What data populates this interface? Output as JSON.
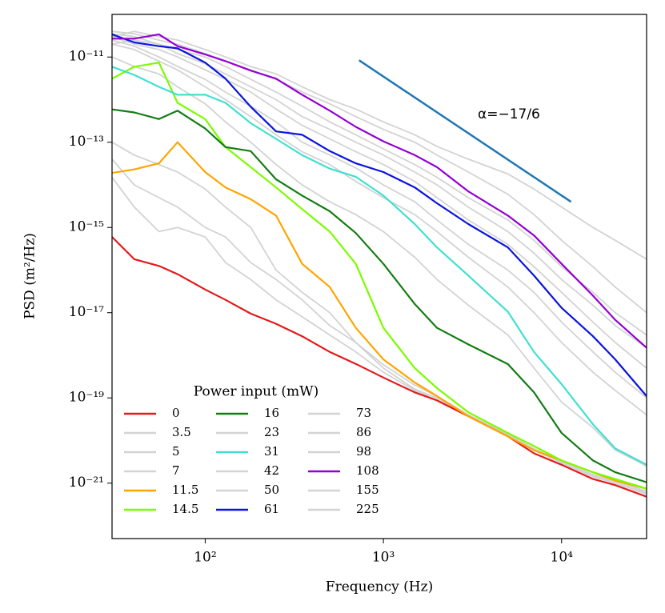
{
  "chart_data": {
    "type": "line",
    "x_label": "Frequency (Hz)",
    "y_label": "PSD (m²/Hz)",
    "x_log": true,
    "y_log": true,
    "xlim": [
      30,
      30000
    ],
    "ylim": [
      5e-23,
      1e-10
    ],
    "xticks": [
      {
        "value": 100,
        "label": "10²"
      },
      {
        "value": 1000,
        "label": "10³"
      },
      {
        "value": 10000,
        "label": "10⁴"
      }
    ],
    "yticks": [
      {
        "value": 1e-21,
        "label": "10⁻²¹"
      },
      {
        "value": 1e-19,
        "label": "10⁻¹⁹"
      },
      {
        "value": 1e-17,
        "label": "10⁻¹⁷"
      },
      {
        "value": 1e-15,
        "label": "10⁻¹⁵"
      },
      {
        "value": 1e-13,
        "label": "10⁻¹³"
      },
      {
        "value": 1e-11,
        "label": "10⁻¹¹"
      }
    ],
    "legend_title": "Power input (mW)",
    "legend_loc": "lower left",
    "annotation": "α=−17/6",
    "ref_line": {
      "x": [
        730,
        11300
      ],
      "values": [
        8.4e-12,
        4e-15
      ],
      "color": "#1f77b4"
    },
    "x": [
      30,
      40,
      55,
      70,
      100,
      130,
      180,
      250,
      350,
      500,
      700,
      1000,
      1500,
      2000,
      3000,
      5000,
      7000,
      10000,
      15000,
      20000,
      30000
    ],
    "series": [
      {
        "name": "0",
        "color": "#e41a1c",
        "values": [
          6e-16,
          1.8e-16,
          1.25e-16,
          8e-17,
          3.5e-17,
          2e-17,
          9.5e-18,
          5.5e-18,
          2.8e-18,
          1.2e-18,
          6.3e-19,
          3e-19,
          1.35e-19,
          8.7e-20,
          3.7e-20,
          1.25e-20,
          5e-21,
          2.7e-21,
          1.25e-21,
          9e-22,
          4.8e-22
        ]
      },
      {
        "name": "3.5",
        "color": "#d3d3d3",
        "values": [
          1.5e-14,
          3e-15,
          8e-16,
          1e-15,
          6e-16,
          1.5e-16,
          6e-17,
          2e-17,
          8e-18,
          3e-18,
          1.2e-18,
          4e-19,
          1.5e-19,
          9e-20,
          4e-20,
          1.3e-20,
          6e-21,
          3e-21,
          1.4e-21,
          1e-21,
          5.5e-22
        ]
      },
      {
        "name": "5",
        "color": "#d3d3d3",
        "values": [
          4e-14,
          1e-14,
          5e-15,
          3e-15,
          1e-15,
          6e-16,
          1.5e-16,
          6e-17,
          2e-17,
          5e-18,
          2e-18,
          5e-19,
          1.6e-19,
          1e-19,
          4e-20,
          1.4e-20,
          6e-21,
          3e-21,
          1.5e-21,
          1e-21,
          6e-22
        ]
      },
      {
        "name": "7",
        "color": "#d3d3d3",
        "values": [
          1e-13,
          5e-14,
          3e-14,
          2e-14,
          8e-15,
          3e-15,
          1e-15,
          1e-16,
          3e-17,
          1e-17,
          2e-18,
          6e-19,
          2e-19,
          1.1e-19,
          4e-20,
          1.4e-20,
          6.5e-21,
          3.2e-21,
          1.6e-21,
          1.1e-21,
          6.5e-22
        ]
      },
      {
        "name": "11.5",
        "color": "#ffa500",
        "values": [
          1.9e-14,
          2.3e-14,
          3.2e-14,
          1e-13,
          2e-14,
          8.7e-15,
          4.6e-15,
          1.9e-15,
          1.4e-16,
          4e-17,
          4.4e-18,
          8e-19,
          2.3e-19,
          1.1e-19,
          3.7e-20,
          1.25e-20,
          5.9e-21,
          3.4e-21,
          1.8e-21,
          1.15e-21,
          7.4e-22
        ]
      },
      {
        "name": "14.5",
        "color": "#7cfc00",
        "values": [
          3.1e-12,
          5.9e-12,
          7.4e-12,
          8.4e-13,
          3.5e-13,
          7.7e-14,
          2.6e-14,
          8.7e-15,
          2.7e-15,
          8e-16,
          1.4e-16,
          4.4e-18,
          5e-19,
          1.7e-19,
          4.6e-20,
          1.5e-20,
          7.4e-21,
          3.4e-21,
          1.8e-21,
          1.25e-21,
          7.4e-22
        ]
      },
      {
        "name": "16",
        "color": "#137d13",
        "values": [
          5.9e-13,
          5e-13,
          3.5e-13,
          5.5e-13,
          2.1e-13,
          7.7e-14,
          6.2e-14,
          1.35e-14,
          5.6e-15,
          2.4e-15,
          7.4e-16,
          1.4e-16,
          1.6e-17,
          4.4e-18,
          1.8e-18,
          6.2e-19,
          1.35e-19,
          1.5e-20,
          3.4e-21,
          1.8e-21,
          1.05e-21
        ]
      },
      {
        "name": "23",
        "color": "#d3d3d3",
        "values": [
          1e-11,
          6e-12,
          4e-12,
          2e-12,
          8e-13,
          3e-13,
          1e-13,
          3e-14,
          1e-14,
          4e-15,
          2e-15,
          8e-16,
          2e-16,
          6e-17,
          1.5e-17,
          3e-18,
          5e-19,
          8e-20,
          2e-20,
          6e-21,
          2.5e-21
        ]
      },
      {
        "name": "31",
        "color": "#40e0d0",
        "values": [
          5.9e-12,
          3.8e-12,
          2e-12,
          1.3e-12,
          1.3e-12,
          8.4e-13,
          2.8e-13,
          1.2e-13,
          5e-14,
          2.4e-14,
          1.55e-14,
          5.6e-15,
          1.2e-15,
          3.4e-16,
          7.4e-17,
          1.05e-17,
          1.2e-18,
          2.1e-19,
          2.4e-20,
          6.5e-21,
          2.7e-21
        ]
      },
      {
        "name": "42",
        "color": "#d3d3d3",
        "values": [
          2e-11,
          1.5e-11,
          8e-12,
          5e-12,
          2e-12,
          1e-12,
          4e-13,
          1.5e-13,
          6e-14,
          3e-14,
          1.2e-14,
          5e-15,
          2e-15,
          8e-16,
          2e-16,
          4e-17,
          1e-17,
          2e-18,
          4e-19,
          1.5e-19,
          4e-20
        ]
      },
      {
        "name": "50",
        "color": "#d3d3d3",
        "values": [
          2.5e-11,
          1.8e-11,
          1e-11,
          6e-12,
          3e-12,
          1.5e-12,
          7e-13,
          3e-13,
          1e-13,
          5e-14,
          2.5e-14,
          1e-14,
          4e-15,
          1.5e-15,
          4e-16,
          1e-16,
          3e-17,
          6e-18,
          1.2e-18,
          4e-19,
          1e-19
        ]
      },
      {
        "name": "61",
        "color": "#0a14e0",
        "values": [
          3.4e-11,
          2.2e-11,
          1.8e-11,
          1.6e-11,
          7.4e-12,
          3.1e-12,
          6.8e-13,
          1.8e-13,
          1.5e-13,
          6.2e-14,
          3.2e-14,
          2e-14,
          8.7e-15,
          3.7e-15,
          1.2e-15,
          3.4e-16,
          7.4e-17,
          1.3e-17,
          2.8e-18,
          8e-19,
          1.1e-19
        ]
      },
      {
        "name": "73",
        "color": "#d3d3d3",
        "values": [
          3e-11,
          2e-11,
          1.5e-11,
          1e-11,
          5e-12,
          3e-12,
          1.5e-12,
          6e-13,
          2.5e-13,
          1.2e-13,
          6e-14,
          3e-14,
          1.2e-14,
          5e-15,
          1.5e-15,
          4e-16,
          1.2e-16,
          3e-17,
          6e-18,
          2e-18,
          5e-19
        ]
      },
      {
        "name": "86",
        "color": "#d3d3d3",
        "values": [
          2e-11,
          2.5e-11,
          2e-11,
          1.2e-11,
          7e-12,
          4e-12,
          2e-12,
          1e-12,
          4e-13,
          2e-13,
          1e-13,
          5e-14,
          2e-14,
          1e-14,
          3e-15,
          8e-16,
          2.5e-16,
          6e-17,
          1.5e-17,
          5e-18,
          1.5e-18
        ]
      },
      {
        "name": "98",
        "color": "#d3d3d3",
        "values": [
          3.5e-11,
          3e-11,
          2e-11,
          1.5e-11,
          1e-11,
          6e-12,
          3e-12,
          1.5e-12,
          7e-13,
          3e-13,
          1.5e-13,
          7e-14,
          3e-14,
          1.5e-14,
          5e-15,
          1.5e-15,
          5e-16,
          1.2e-16,
          3e-17,
          1e-17,
          3e-18
        ]
      },
      {
        "name": "108",
        "color": "#9400d3",
        "values": [
          2.7e-11,
          2.7e-11,
          3.4e-11,
          1.8e-11,
          1.15e-11,
          8e-12,
          4.8e-12,
          3.1e-12,
          1.3e-12,
          5.5e-13,
          2.3e-13,
          1.05e-13,
          5e-14,
          2.6e-14,
          7e-15,
          1.9e-15,
          6.5e-16,
          1.4e-16,
          2.5e-17,
          6.8e-18,
          1.5e-18
        ]
      },
      {
        "name": "155",
        "color": "#d3d3d3",
        "values": [
          4e-11,
          3.5e-11,
          2.5e-11,
          2e-11,
          1.2e-11,
          8e-12,
          5e-12,
          3e-12,
          1.5e-12,
          8e-13,
          4e-13,
          2e-13,
          1e-13,
          5e-14,
          2e-14,
          6e-15,
          2e-15,
          5e-16,
          1.2e-16,
          4e-17,
          1e-17
        ]
      },
      {
        "name": "225",
        "color": "#d3d3d3",
        "values": [
          3e-11,
          4e-11,
          3e-11,
          2.5e-11,
          1.5e-11,
          1e-11,
          6e-12,
          4e-12,
          2e-12,
          1e-12,
          6e-13,
          3e-13,
          1.5e-13,
          8e-14,
          4e-14,
          1.8e-14,
          8e-15,
          3e-15,
          1e-15,
          5e-16,
          1.8e-16
        ]
      }
    ]
  }
}
